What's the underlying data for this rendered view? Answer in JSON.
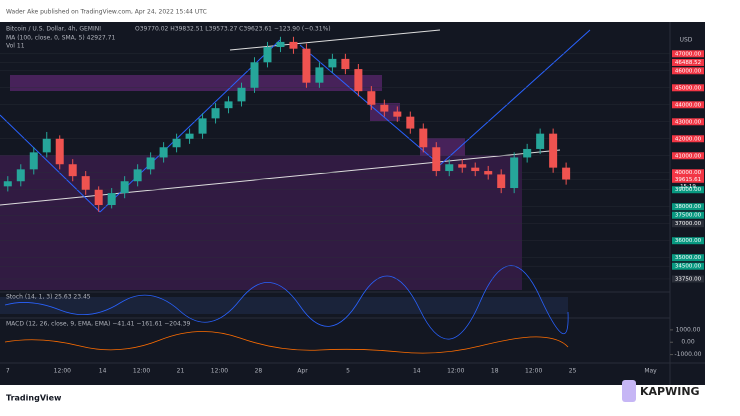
{
  "header": {
    "publisher": "Wader Ake published on TradingView.com, Apr 24, 2022 15:44 UTC"
  },
  "chart_data": {
    "type": "candlestick",
    "title": "Bitcoin / U.S. Dollar, 4h, GEMINI",
    "ohlc_readout": "O39770.02 H39832.51 L39573.27 C39623.61 −123.90 (−0.31%)",
    "indicators": [
      "MA (100, close, 0, SMA, 5)  42927.71",
      "Vol  11"
    ],
    "currency": "USD",
    "countdown": "15:19",
    "open": [
      39200,
      39500,
      40200,
      41200,
      42000,
      40500,
      39800,
      39000,
      38100,
      38800,
      39500,
      40200,
      40900,
      41500,
      42000,
      42300,
      43200,
      43800,
      44200,
      45000,
      46500,
      47400,
      47700,
      47300,
      45300,
      46200,
      46700,
      46100,
      44800,
      44000,
      43600,
      43300,
      42600,
      41500,
      40100,
      40500,
      40300,
      40100,
      39900,
      39100,
      40900,
      41400,
      42300,
      40300
    ],
    "high": [
      39800,
      40500,
      41500,
      42400,
      42200,
      40800,
      40100,
      39200,
      39100,
      39800,
      40500,
      41200,
      41800,
      42300,
      42600,
      43500,
      44100,
      44500,
      45300,
      46800,
      47700,
      48000,
      48000,
      47600,
      46500,
      47000,
      47000,
      46400,
      45100,
      44300,
      43900,
      43600,
      42900,
      41800,
      40800,
      40800,
      40600,
      40400,
      40200,
      41200,
      41700,
      42600,
      42600,
      40600
    ],
    "low": [
      38900,
      39200,
      39900,
      40900,
      40200,
      39500,
      38700,
      37700,
      37900,
      38500,
      39200,
      39900,
      40600,
      41200,
      41700,
      42000,
      42900,
      43500,
      43900,
      44700,
      46200,
      47100,
      47000,
      45000,
      45000,
      45900,
      45800,
      44500,
      43700,
      43300,
      43000,
      42300,
      41200,
      39800,
      39800,
      40000,
      39800,
      39600,
      38800,
      38800,
      40600,
      41100,
      40000,
      39300
    ],
    "close": [
      39500,
      40200,
      41200,
      42000,
      40500,
      39800,
      39000,
      38100,
      38800,
      39500,
      40200,
      40900,
      41500,
      42000,
      42300,
      43200,
      43800,
      44200,
      45000,
      46500,
      47400,
      47700,
      47300,
      45300,
      46200,
      46700,
      46100,
      44800,
      44000,
      43600,
      43300,
      42600,
      41500,
      40100,
      40500,
      40300,
      40100,
      39900,
      39100,
      40900,
      41400,
      42300,
      40300,
      39600
    ],
    "up_color": "#26a69a",
    "down_color": "#ef5350",
    "ylim": [
      33100,
      48400
    ],
    "yticks": [
      {
        "value": 47000,
        "label": "47000.00"
      },
      {
        "value": 46488.52,
        "label": "46488.52"
      },
      {
        "value": 46000,
        "label": "46000.00"
      },
      {
        "value": 45000,
        "label": "45000.00"
      },
      {
        "value": 44000,
        "label": "44000.00"
      },
      {
        "value": 43000,
        "label": "43000.00"
      },
      {
        "value": 42000,
        "label": "42000.00"
      },
      {
        "value": 41000,
        "label": "41000.00"
      },
      {
        "value": 40000,
        "label": "40000.00"
      },
      {
        "value": 39615.61,
        "label": "39615.61"
      },
      {
        "value": 39000,
        "label": "39000.00"
      },
      {
        "value": 38000,
        "label": "38000.00"
      },
      {
        "value": 37500,
        "label": "37500.00"
      },
      {
        "value": 37000,
        "label": "37000.00"
      },
      {
        "value": 36000,
        "label": "36000.00"
      },
      {
        "value": 35000,
        "label": "35000.00"
      },
      {
        "value": 34500,
        "label": "34500.00"
      },
      {
        "value": 33750,
        "label": "33750.00"
      }
    ],
    "ytick_colors": [
      "#f23645",
      "#f23645",
      "#f23645",
      "#f23645",
      "#f23645",
      "#f23645",
      "#f23645",
      "#f23645",
      "#f23645",
      "#f23645",
      "#089981",
      "#089981",
      "#089981",
      "#2a2e39",
      "#089981",
      "#089981",
      "#089981",
      "#2a2e39"
    ],
    "xlim": [
      -0.6,
      51
    ],
    "xticks": [
      {
        "value": 0,
        "label": "7"
      },
      {
        "value": 4.2,
        "label": "12:00"
      },
      {
        "value": 7.3,
        "label": "14"
      },
      {
        "value": 10.3,
        "label": "12:00"
      },
      {
        "value": 13.3,
        "label": "21"
      },
      {
        "value": 16.3,
        "label": "12:00"
      },
      {
        "value": 19.3,
        "label": "28"
      },
      {
        "value": 22.7,
        "label": "Apr"
      },
      {
        "value": 26.2,
        "label": "5"
      },
      {
        "value": 31.5,
        "label": "14"
      },
      {
        "value": 34.5,
        "label": "12:00"
      },
      {
        "value": 37.5,
        "label": "18"
      },
      {
        "value": 40.5,
        "label": "12:00"
      },
      {
        "value": 43.5,
        "label": "25"
      },
      {
        "value": 49.5,
        "label": "May"
      }
    ]
  },
  "stoch": {
    "label": "Stoch (14, 1, 3)  25.63  23.45"
  },
  "macd": {
    "label": "MACD (12, 26, close, 9, EMA, EMA)  −41.41  −161.61  −204.39",
    "ylim": [
      -1600,
      1800
    ],
    "yticks": [
      {
        "value": 1000,
        "label": "1000.00"
      },
      {
        "value": 0,
        "label": "0.00"
      },
      {
        "value": -1000,
        "label": "-1000.00"
      }
    ]
  },
  "footer": {
    "logo": "TradingView",
    "watermark": "KAPWING"
  }
}
